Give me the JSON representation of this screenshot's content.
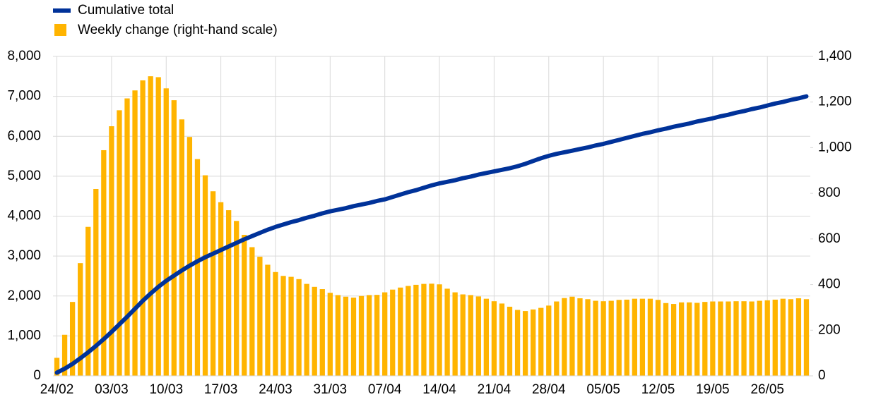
{
  "chart_data": {
    "type": "combo",
    "categories": [
      "24/02",
      null,
      null,
      null,
      null,
      null,
      null,
      "03/03",
      null,
      null,
      null,
      null,
      null,
      null,
      "10/03",
      null,
      null,
      null,
      null,
      null,
      null,
      "17/03",
      null,
      null,
      null,
      null,
      null,
      null,
      "24/03",
      null,
      null,
      null,
      null,
      null,
      null,
      "31/03",
      null,
      null,
      null,
      null,
      null,
      null,
      "07/04",
      null,
      null,
      null,
      null,
      null,
      null,
      "14/04",
      null,
      null,
      null,
      null,
      null,
      null,
      "21/04",
      null,
      null,
      null,
      null,
      null,
      null,
      "28/04",
      null,
      null,
      null,
      null,
      null,
      null,
      "05/05",
      null,
      null,
      null,
      null,
      null,
      null,
      "12/05",
      null,
      null,
      null,
      null,
      null,
      null,
      "19/05",
      null,
      null,
      null,
      null,
      null,
      null,
      "26/05",
      null,
      null,
      null,
      null,
      null
    ],
    "series": [
      {
        "name": "Cumulative total",
        "type": "line",
        "axis": "y",
        "color": "#003299",
        "values": [
          80,
          180,
          300,
          440,
          590,
          750,
          920,
          1100,
          1290,
          1480,
          1680,
          1880,
          2060,
          2230,
          2380,
          2510,
          2640,
          2760,
          2870,
          2970,
          3060,
          3150,
          3240,
          3330,
          3420,
          3500,
          3580,
          3660,
          3730,
          3790,
          3850,
          3900,
          3960,
          4010,
          4070,
          4120,
          4160,
          4200,
          4250,
          4290,
          4330,
          4380,
          4420,
          4480,
          4540,
          4600,
          4650,
          4710,
          4770,
          4820,
          4860,
          4900,
          4950,
          4990,
          5040,
          5080,
          5120,
          5160,
          5200,
          5250,
          5310,
          5380,
          5450,
          5510,
          5560,
          5600,
          5640,
          5680,
          5720,
          5770,
          5810,
          5860,
          5910,
          5960,
          6010,
          6060,
          6100,
          6150,
          6190,
          6240,
          6280,
          6320,
          6370,
          6410,
          6450,
          6500,
          6540,
          6590,
          6630,
          6680,
          6720,
          6770,
          6820,
          6860,
          6910,
          6950,
          7000
        ]
      },
      {
        "name": "Weekly change (right-hand scale)",
        "type": "bar",
        "axis": "y2",
        "color": "#ffb400",
        "values": [
          79,
          180,
          324,
          494,
          653,
          819,
          989,
          1094,
          1164,
          1216,
          1251,
          1295,
          1313,
          1309,
          1260,
          1208,
          1124,
          1047,
          950,
          879,
          809,
          761,
          726,
          679,
          618,
          564,
          522,
          487,
          455,
          438,
          434,
          424,
          403,
          390,
          380,
          364,
          354,
          347,
          343,
          350,
          354,
          355,
          366,
          378,
          387,
          394,
          399,
          403,
          404,
          401,
          382,
          366,
          357,
          354,
          348,
          338,
          327,
          317,
          303,
          289,
          284,
          291,
          298,
          308,
          326,
          341,
          347,
          340,
          336,
          329,
          327,
          329,
          333,
          334,
          338,
          338,
          338,
          333,
          319,
          315,
          322,
          322,
          320,
          324,
          326,
          326,
          326,
          327,
          327,
          326,
          329,
          331,
          334,
          338,
          336,
          340,
          336
        ]
      }
    ],
    "ylim": [
      0,
      8000
    ],
    "yticks": [
      0,
      {
        "value": 1000,
        "label": "1,000"
      },
      {
        "value": 2000,
        "label": "2,000"
      },
      {
        "value": 3000,
        "label": "3,000"
      },
      {
        "value": 4000,
        "label": "4,000"
      },
      {
        "value": 5000,
        "label": "5,000"
      },
      {
        "value": 6000,
        "label": "6,000"
      },
      {
        "value": 7000,
        "label": "7,000"
      },
      {
        "value": 8000,
        "label": "8,000"
      }
    ],
    "y2lim": [
      0,
      1400
    ],
    "y2ticks": [
      0,
      200,
      400,
      600,
      800,
      {
        "value": 1000,
        "label": "1,000"
      },
      {
        "value": 1200,
        "label": "1,200"
      },
      {
        "value": 1400,
        "label": "1,400"
      }
    ],
    "grid": true
  }
}
